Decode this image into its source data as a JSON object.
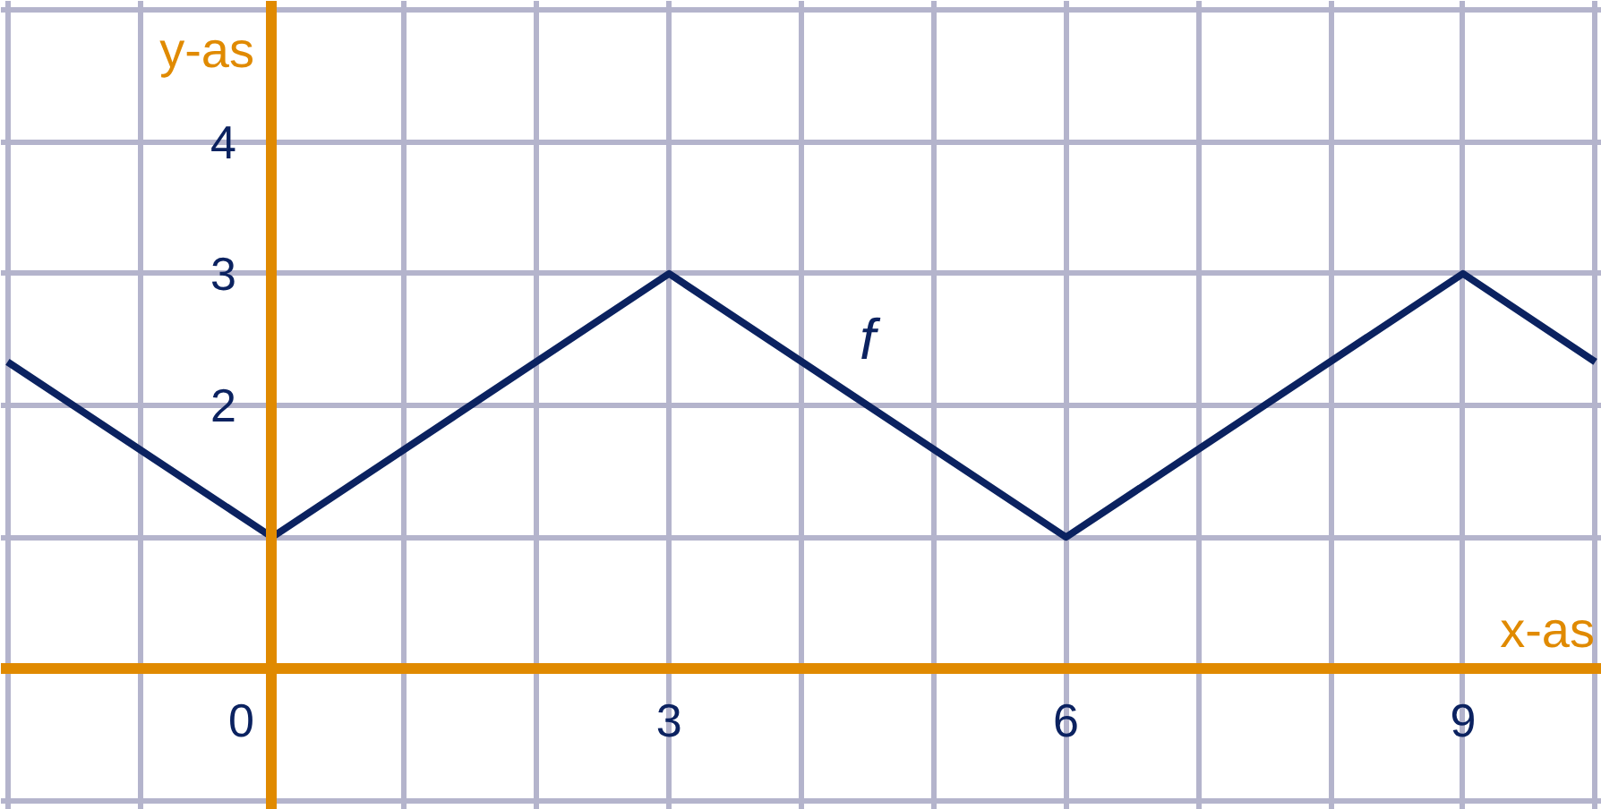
{
  "chart_data": {
    "type": "line",
    "xlabel": "x-as",
    "ylabel": "y-as",
    "x": [
      -2,
      0,
      3,
      6,
      9,
      10
    ],
    "series": [
      {
        "name": "f",
        "color": "#0b2260",
        "values": [
          2.33,
          1,
          3,
          1,
          3,
          2.33
        ]
      }
    ],
    "xlim": [
      -2.05,
      10.05
    ],
    "ylim": [
      -1.07,
      5.07
    ],
    "xticks": [
      {
        "value": -2,
        "label": null
      },
      {
        "value": -1,
        "label": null
      },
      0,
      {
        "value": 1,
        "label": null
      },
      {
        "value": 2,
        "label": null
      },
      3,
      {
        "value": 4,
        "label": null
      },
      {
        "value": 5,
        "label": null
      },
      6,
      {
        "value": 7,
        "label": null
      },
      {
        "value": 8,
        "label": null
      },
      9,
      {
        "value": 10,
        "label": null
      }
    ],
    "yticks": [
      {
        "value": -1,
        "label": null
      },
      {
        "value": 0,
        "label": null
      },
      {
        "value": 1,
        "label": null
      },
      2,
      3,
      4,
      {
        "value": 5,
        "label": null
      }
    ],
    "grid": true,
    "marker": "none",
    "line_style": "solid"
  }
}
